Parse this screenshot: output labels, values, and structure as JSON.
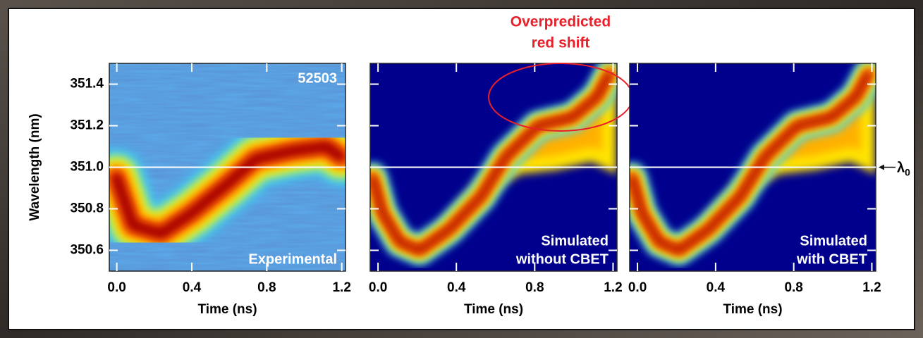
{
  "chart_data": [
    {
      "type": "heatmap",
      "ylabel": "Wavelength (nm)",
      "xlabel": "Time (ns)",
      "xlim": [
        -0.04,
        1.22
      ],
      "ylim": [
        350.5,
        351.5
      ],
      "xticks": [
        {
          "value": 0,
          "label": "0.0"
        },
        0.4,
        0.8,
        1.2
      ],
      "yticks": [
        350.6,
        350.8,
        {
          "value": 351,
          "label": "351.0"
        },
        351.2,
        351.4
      ],
      "hline": 351,
      "shot": "52503",
      "annotation": [
        "Experimental"
      ]
    },
    {
      "type": "heatmap",
      "xlabel": "Time (ns)",
      "xlim": [
        -0.04,
        1.22
      ],
      "ylim": [
        350.5,
        351.5
      ],
      "xticks": [
        {
          "value": 0,
          "label": "0.0"
        },
        0.4,
        0.8,
        1.2
      ],
      "yticks": [
        350.6,
        350.8,
        {
          "value": 351,
          "label": "351.0"
        },
        351.2,
        351.4
      ],
      "hline": 351,
      "annotation": [
        "Simulated",
        "without CBET"
      ],
      "callout": [
        "Overpredicted",
        "red shift"
      ],
      "callout_color": "#e8202a"
    },
    {
      "type": "heatmap",
      "xlabel": "Time (ns)",
      "xlim": [
        -0.04,
        1.22
      ],
      "ylim": [
        350.5,
        351.5
      ],
      "xticks": [
        {
          "value": 0,
          "label": "0.0"
        },
        0.4,
        0.8,
        1.2
      ],
      "yticks": [
        350.6,
        350.8,
        {
          "value": 351,
          "label": "351.0"
        },
        351.2,
        351.4
      ],
      "hline": 351,
      "annotation": [
        "Simulated",
        "with CBET"
      ],
      "hline_label": {
        "symbol": "λ",
        "subscript": "0"
      }
    }
  ]
}
